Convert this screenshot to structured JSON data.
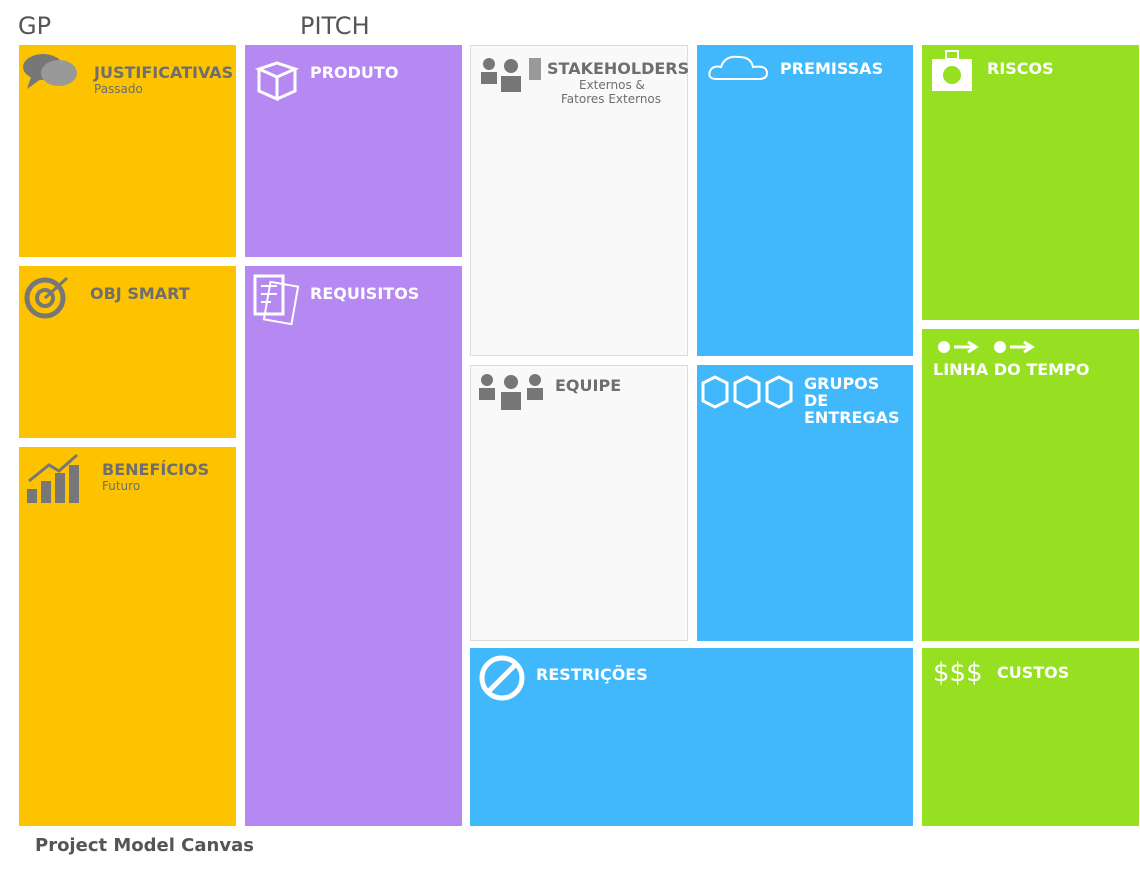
{
  "header": {
    "gp": "GP",
    "pitch": "PITCH"
  },
  "blocks": [
    {
      "title": "JUSTIFICATIVAS",
      "subtitle": "Passado"
    },
    {
      "title": "OBJ SMART"
    },
    {
      "title": "BENEFÍCIOS",
      "subtitle": "Futuro"
    },
    {
      "title": "PRODUTO"
    },
    {
      "title": "REQUISITOS"
    },
    {
      "title": "STAKEHOLDERS",
      "subtitle": "Externos &",
      "subtitle2": "Fatores Externos"
    },
    {
      "title": "EQUIPE"
    },
    {
      "title": "PREMISSAS"
    },
    {
      "title": "GRUPOS DE ENTREGAS"
    },
    {
      "title": "RESTRIÇÕES"
    },
    {
      "title": "RISCOS"
    },
    {
      "title": "LINHA DO TEMPO"
    },
    {
      "title": "CUSTOS",
      "icon_text": "$$$"
    }
  ],
  "footer": "Project Model Canvas"
}
